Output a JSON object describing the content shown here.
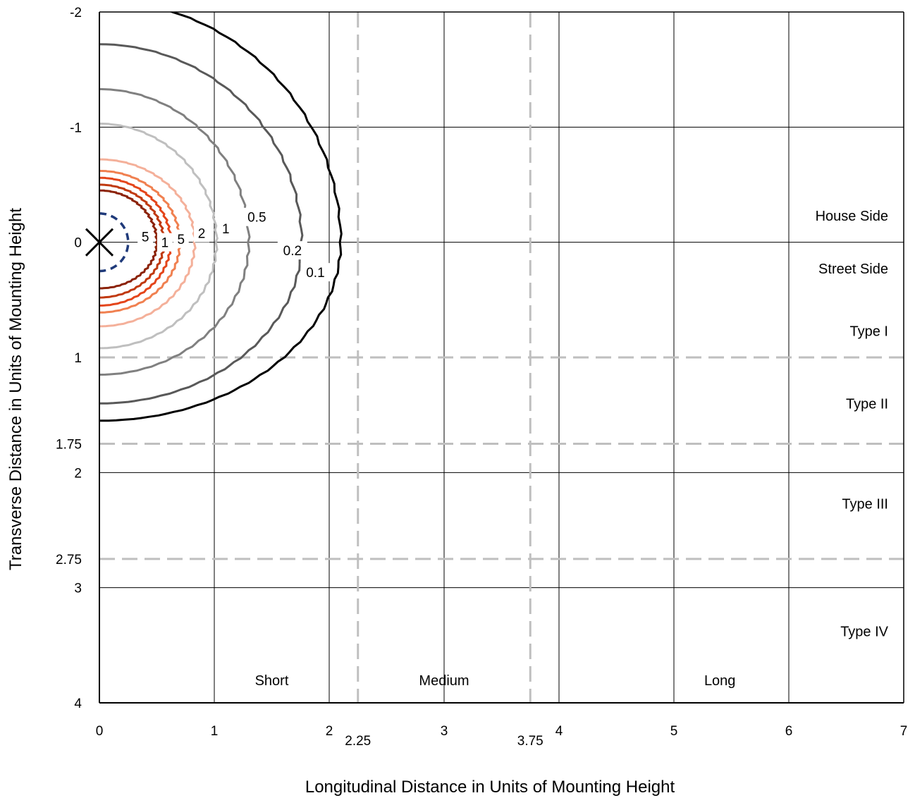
{
  "chart_data": {
    "type": "isofootcandle contour plot",
    "xlabel": "Longitudinal Distance in Units of Mounting Height",
    "ylabel": "Transverse Distance in Units of Mounting Height",
    "xlim": [
      0,
      7
    ],
    "ylim": [
      -2,
      4
    ],
    "y_inverted": true,
    "grid": true,
    "x_ticks": [
      "0",
      "1",
      "2",
      "3",
      "4",
      "5",
      "6",
      "7"
    ],
    "x_extra_ticks": [
      {
        "value": 2.25,
        "label": "2.25"
      },
      {
        "value": 3.75,
        "label": "3.75"
      }
    ],
    "y_ticks": [
      {
        "value": -2,
        "label": "-2"
      },
      {
        "value": -1,
        "label": "-1"
      },
      {
        "value": 0,
        "label": "0"
      },
      {
        "value": 1,
        "label": "1"
      },
      {
        "value": 1.75,
        "label": "1.75"
      },
      {
        "value": 2,
        "label": "2"
      },
      {
        "value": 2.75,
        "label": "2.75"
      },
      {
        "value": 3,
        "label": "3"
      },
      {
        "value": 4,
        "label": "4"
      }
    ],
    "reference_lines": {
      "vertical": [
        2.25,
        3.75
      ],
      "horizontal": [
        1,
        1.75,
        2.75
      ],
      "color": "#bfbfbf",
      "style": "dashed"
    },
    "lateral_regions": [
      {
        "label": "House Side",
        "y": -0.23
      },
      {
        "label": "Street Side",
        "y": 0.23
      },
      {
        "label": "Type I",
        "y": 0.77
      },
      {
        "label": "Type II",
        "y": 1.4
      },
      {
        "label": "Type III",
        "y": 2.27
      },
      {
        "label": "Type IV",
        "y": 3.38
      }
    ],
    "vertical_regions": [
      {
        "label": "Short",
        "x": 1.5
      },
      {
        "label": "Medium",
        "x": 3.0
      },
      {
        "label": "Long",
        "x": 5.4
      }
    ],
    "luminaire_marker": {
      "x": 0,
      "y": 0,
      "symbol": "X"
    },
    "contours": [
      {
        "name": "0.1",
        "color": "#000000",
        "rx": 2.1,
        "ry_house": 2.1,
        "ry_street": 1.55,
        "label_pos": [
          1.88,
          0.26
        ]
      },
      {
        "name": "0.2",
        "color": "#595959",
        "rx": 1.76,
        "ry_house": 1.72,
        "ry_street": 1.4,
        "label_pos": [
          1.68,
          0.07
        ]
      },
      {
        "name": "0.5",
        "color": "#808080",
        "rx": 1.3,
        "ry_house": 1.33,
        "ry_street": 1.15,
        "label_pos": [
          1.37,
          -0.22
        ]
      },
      {
        "name": "1",
        "color": "#bfbfbf",
        "rx": 1.02,
        "ry_house": 1.03,
        "ry_street": 0.92,
        "label_pos": [
          1.1,
          -0.12
        ]
      },
      {
        "name": "2",
        "color": "#f4b09a",
        "rx": 0.83,
        "ry_house": 0.72,
        "ry_street": 0.73,
        "label_pos": [
          0.89,
          -0.08
        ]
      },
      {
        "name": "5",
        "color": "#f08050",
        "rx": 0.7,
        "ry_house": 0.62,
        "ry_street": 0.61,
        "label_pos": [
          0.71,
          -0.03
        ]
      },
      {
        "name": "1",
        "color": "#e4451a",
        "rx": 0.62,
        "ry_house": 0.56,
        "ry_street": 0.55,
        "label_pos": [
          0.57,
          0.0
        ]
      },
      {
        "name": "",
        "color": "#c0390f",
        "rx": 0.56,
        "ry_house": 0.5,
        "ry_street": 0.48,
        "label_pos": null
      },
      {
        "name": "5",
        "color": "#8b2208",
        "rx": 0.5,
        "ry_house": 0.45,
        "ry_street": 0.4,
        "label_pos": [
          0.4,
          -0.05
        ]
      },
      {
        "name": "",
        "color": "#1f3a7a",
        "rx": 0.25,
        "ry_house": 0.25,
        "ry_street": 0.25,
        "dashed": true,
        "label_pos": null
      }
    ]
  }
}
